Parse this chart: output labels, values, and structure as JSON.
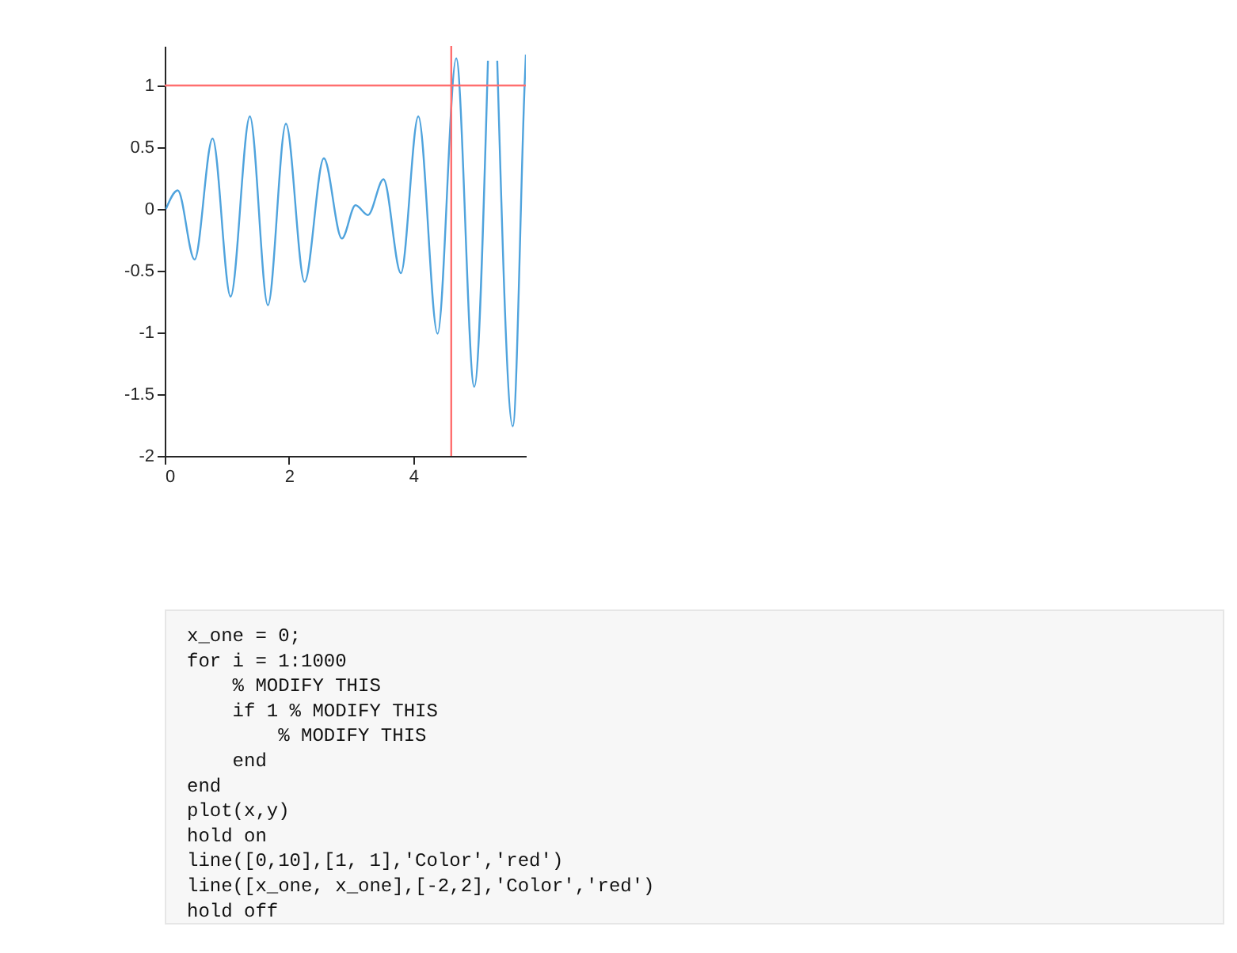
{
  "chart_data": {
    "type": "line",
    "x": [
      0.02,
      0.21,
      0.48,
      0.77,
      1.06,
      1.37,
      1.66,
      1.95,
      2.25,
      2.56,
      2.85,
      3.07,
      3.27,
      3.52,
      3.8,
      4.08,
      4.39,
      4.69,
      4.98,
      5.2,
      5.28,
      5.35,
      5.6,
      5.79,
      5.81
    ],
    "series": [
      {
        "color": "#4fa3dd",
        "values": [
          0,
          0.15,
          -0.41,
          0.57,
          -0.71,
          0.75,
          -0.78,
          0.69,
          -0.59,
          0.41,
          -0.24,
          0.03,
          -0.05,
          0.24,
          -0.52,
          0.75,
          -1.01,
          1.22,
          -1.44,
          1.2,
          null,
          1.2,
          -1.76,
          1.0,
          1.25
        ]
      }
    ],
    "xlim": [
      0,
      5.81
    ],
    "xticks": [
      0,
      2,
      4
    ],
    "ylim": [
      -2,
      1.32
    ],
    "yticks": [
      -2,
      -1.5,
      -1,
      -0.5,
      0,
      0.5,
      1
    ],
    "grid": false,
    "marker": "none",
    "line_style": "solid",
    "ref_lines": [
      {
        "axis": "y",
        "value": 1,
        "color": "#ff6f6f"
      },
      {
        "axis": "x",
        "value": 4.61,
        "color": "#ff6f6f"
      }
    ],
    "annotations": [
      "x_one = 0;",
      "for i = 1:1000",
      "    % MODIFY THIS",
      "    if 1  % MODIFY THIS",
      "        % MODIFY THIS",
      "    end",
      "end",
      "plot(x,y)",
      "hold on",
      "line([0,10],[1, 1],'Color','red')",
      "line([x_one, x_one],[-2,2],'Color','red')",
      "hold off"
    ]
  }
}
